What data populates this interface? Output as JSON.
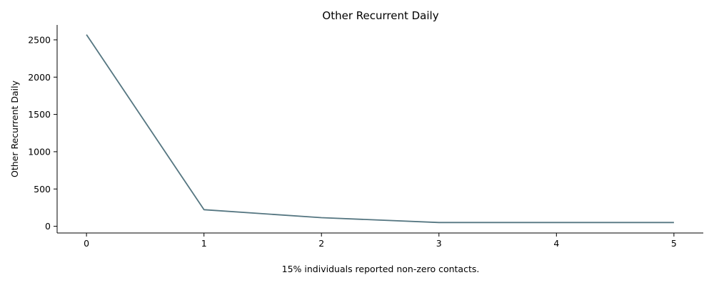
{
  "chart_data": {
    "type": "line",
    "title": "Other Recurrent Daily",
    "xlabel": "",
    "ylabel": "Other Recurrent Daily",
    "caption": "15% individuals reported non-zero contacts.",
    "x": [
      0,
      1,
      2,
      3,
      4,
      5
    ],
    "series": [
      {
        "values": [
          2570,
          222,
          115,
          50,
          50,
          50
        ],
        "color": "#557681"
      }
    ],
    "xlim": [
      -0.25,
      5.25
    ],
    "ylim": [
      -90,
      2700
    ],
    "xticks": [
      0,
      1,
      2,
      3,
      4,
      5
    ],
    "yticks": [
      0,
      500,
      1000,
      1500,
      2000,
      2500
    ],
    "grid": false,
    "legend": "none"
  }
}
